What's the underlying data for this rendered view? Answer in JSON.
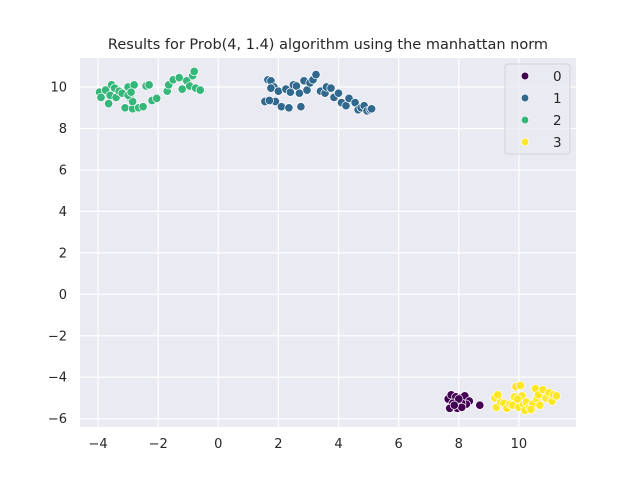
{
  "chart_data": {
    "type": "scatter",
    "title": "Results for Prob(4, 1.4) algorithm using the manhattan norm",
    "xlabel": "",
    "ylabel": "",
    "xlim": [
      -4.6,
      11.9
    ],
    "ylim": [
      -6.4,
      11.4
    ],
    "xticks": [
      -4,
      -2,
      0,
      2,
      4,
      6,
      8,
      10
    ],
    "yticks": [
      -6,
      -4,
      -2,
      0,
      2,
      4,
      6,
      8,
      10
    ],
    "xtick_labels": [
      "−4",
      "−2",
      "0",
      "2",
      "4",
      "6",
      "8",
      "10"
    ],
    "ytick_labels": [
      "−6",
      "−4",
      "−2",
      "0",
      "2",
      "4",
      "6",
      "8",
      "10"
    ],
    "grid": true,
    "legend_position": "top-right",
    "series": [
      {
        "name": "0",
        "color": "#440154",
        "points": [
          [
            7.65,
            -5.05
          ],
          [
            7.75,
            -4.85
          ],
          [
            7.9,
            -4.95
          ],
          [
            8.05,
            -5.0
          ],
          [
            8.2,
            -4.9
          ],
          [
            8.35,
            -5.15
          ],
          [
            8.25,
            -5.3
          ],
          [
            8.1,
            -5.25
          ],
          [
            7.95,
            -5.2
          ],
          [
            7.8,
            -5.25
          ],
          [
            7.7,
            -5.5
          ],
          [
            7.95,
            -5.5
          ],
          [
            8.1,
            -5.45
          ],
          [
            8.7,
            -5.35
          ],
          [
            8.0,
            -5.05
          ],
          [
            7.85,
            -5.35
          ]
        ]
      },
      {
        "name": "1",
        "color": "#31688e",
        "points": [
          [
            1.55,
            9.3
          ],
          [
            1.65,
            10.35
          ],
          [
            1.75,
            10.3
          ],
          [
            1.85,
            10.0
          ],
          [
            1.9,
            9.3
          ],
          [
            1.75,
            9.95
          ],
          [
            2.0,
            9.8
          ],
          [
            2.1,
            9.05
          ],
          [
            2.25,
            9.9
          ],
          [
            2.35,
            9.0
          ],
          [
            2.4,
            9.75
          ],
          [
            2.5,
            10.1
          ],
          [
            2.6,
            10.05
          ],
          [
            2.7,
            9.7
          ],
          [
            2.75,
            9.05
          ],
          [
            2.85,
            10.3
          ],
          [
            2.95,
            9.85
          ],
          [
            3.05,
            10.2
          ],
          [
            3.15,
            10.35
          ],
          [
            3.25,
            10.6
          ],
          [
            3.4,
            9.8
          ],
          [
            3.55,
            9.7
          ],
          [
            3.6,
            10.0
          ],
          [
            3.75,
            9.95
          ],
          [
            3.85,
            9.5
          ],
          [
            4.0,
            9.7
          ],
          [
            4.1,
            9.25
          ],
          [
            4.25,
            9.1
          ],
          [
            4.35,
            9.45
          ],
          [
            4.55,
            9.25
          ],
          [
            4.65,
            8.9
          ],
          [
            4.75,
            9.0
          ],
          [
            4.85,
            9.1
          ],
          [
            4.95,
            8.85
          ],
          [
            5.05,
            8.9
          ],
          [
            5.1,
            8.95
          ],
          [
            1.7,
            9.35
          ]
        ]
      },
      {
        "name": "2",
        "color": "#35b779",
        "points": [
          [
            -3.95,
            9.75
          ],
          [
            -3.9,
            9.5
          ],
          [
            -3.75,
            9.85
          ],
          [
            -3.65,
            9.2
          ],
          [
            -3.6,
            9.6
          ],
          [
            -3.55,
            10.1
          ],
          [
            -3.45,
            9.95
          ],
          [
            -3.4,
            9.5
          ],
          [
            -3.3,
            9.8
          ],
          [
            -3.1,
            9.0
          ],
          [
            -3.0,
            10.0
          ],
          [
            -2.95,
            9.5
          ],
          [
            -2.85,
            8.95
          ],
          [
            -2.85,
            9.3
          ],
          [
            -2.8,
            10.1
          ],
          [
            -2.65,
            9.0
          ],
          [
            -2.5,
            9.05
          ],
          [
            -2.4,
            10.05
          ],
          [
            -2.3,
            10.1
          ],
          [
            -2.2,
            9.35
          ],
          [
            -2.05,
            9.45
          ],
          [
            -1.7,
            9.8
          ],
          [
            -1.65,
            10.1
          ],
          [
            -1.5,
            10.35
          ],
          [
            -1.3,
            10.45
          ],
          [
            -1.2,
            9.9
          ],
          [
            -1.05,
            10.3
          ],
          [
            -0.95,
            10.05
          ],
          [
            -0.85,
            10.55
          ],
          [
            -0.8,
            10.75
          ],
          [
            -0.75,
            9.95
          ],
          [
            -0.6,
            9.85
          ],
          [
            -3.2,
            9.7
          ],
          [
            -3.0,
            9.6
          ],
          [
            -2.9,
            9.75
          ]
        ]
      },
      {
        "name": "3",
        "color": "#fde725",
        "points": [
          [
            9.2,
            -5.0
          ],
          [
            9.25,
            -5.45
          ],
          [
            9.4,
            -5.2
          ],
          [
            9.5,
            -5.25
          ],
          [
            9.6,
            -5.5
          ],
          [
            9.7,
            -5.3
          ],
          [
            9.8,
            -5.35
          ],
          [
            9.85,
            -4.95
          ],
          [
            9.9,
            -4.45
          ],
          [
            10.0,
            -5.45
          ],
          [
            10.05,
            -4.4
          ],
          [
            10.1,
            -4.9
          ],
          [
            10.15,
            -5.3
          ],
          [
            10.2,
            -5.6
          ],
          [
            10.25,
            -5.2
          ],
          [
            10.35,
            -5.45
          ],
          [
            10.45,
            -5.3
          ],
          [
            10.55,
            -4.55
          ],
          [
            10.6,
            -5.05
          ],
          [
            10.65,
            -4.85
          ],
          [
            10.7,
            -5.35
          ],
          [
            10.8,
            -4.6
          ],
          [
            10.9,
            -5.0
          ],
          [
            11.0,
            -4.75
          ],
          [
            11.1,
            -5.15
          ],
          [
            11.15,
            -4.85
          ],
          [
            11.25,
            -4.9
          ],
          [
            9.3,
            -4.85
          ],
          [
            9.95,
            -5.05
          ],
          [
            10.4,
            -5.55
          ]
        ]
      }
    ]
  }
}
